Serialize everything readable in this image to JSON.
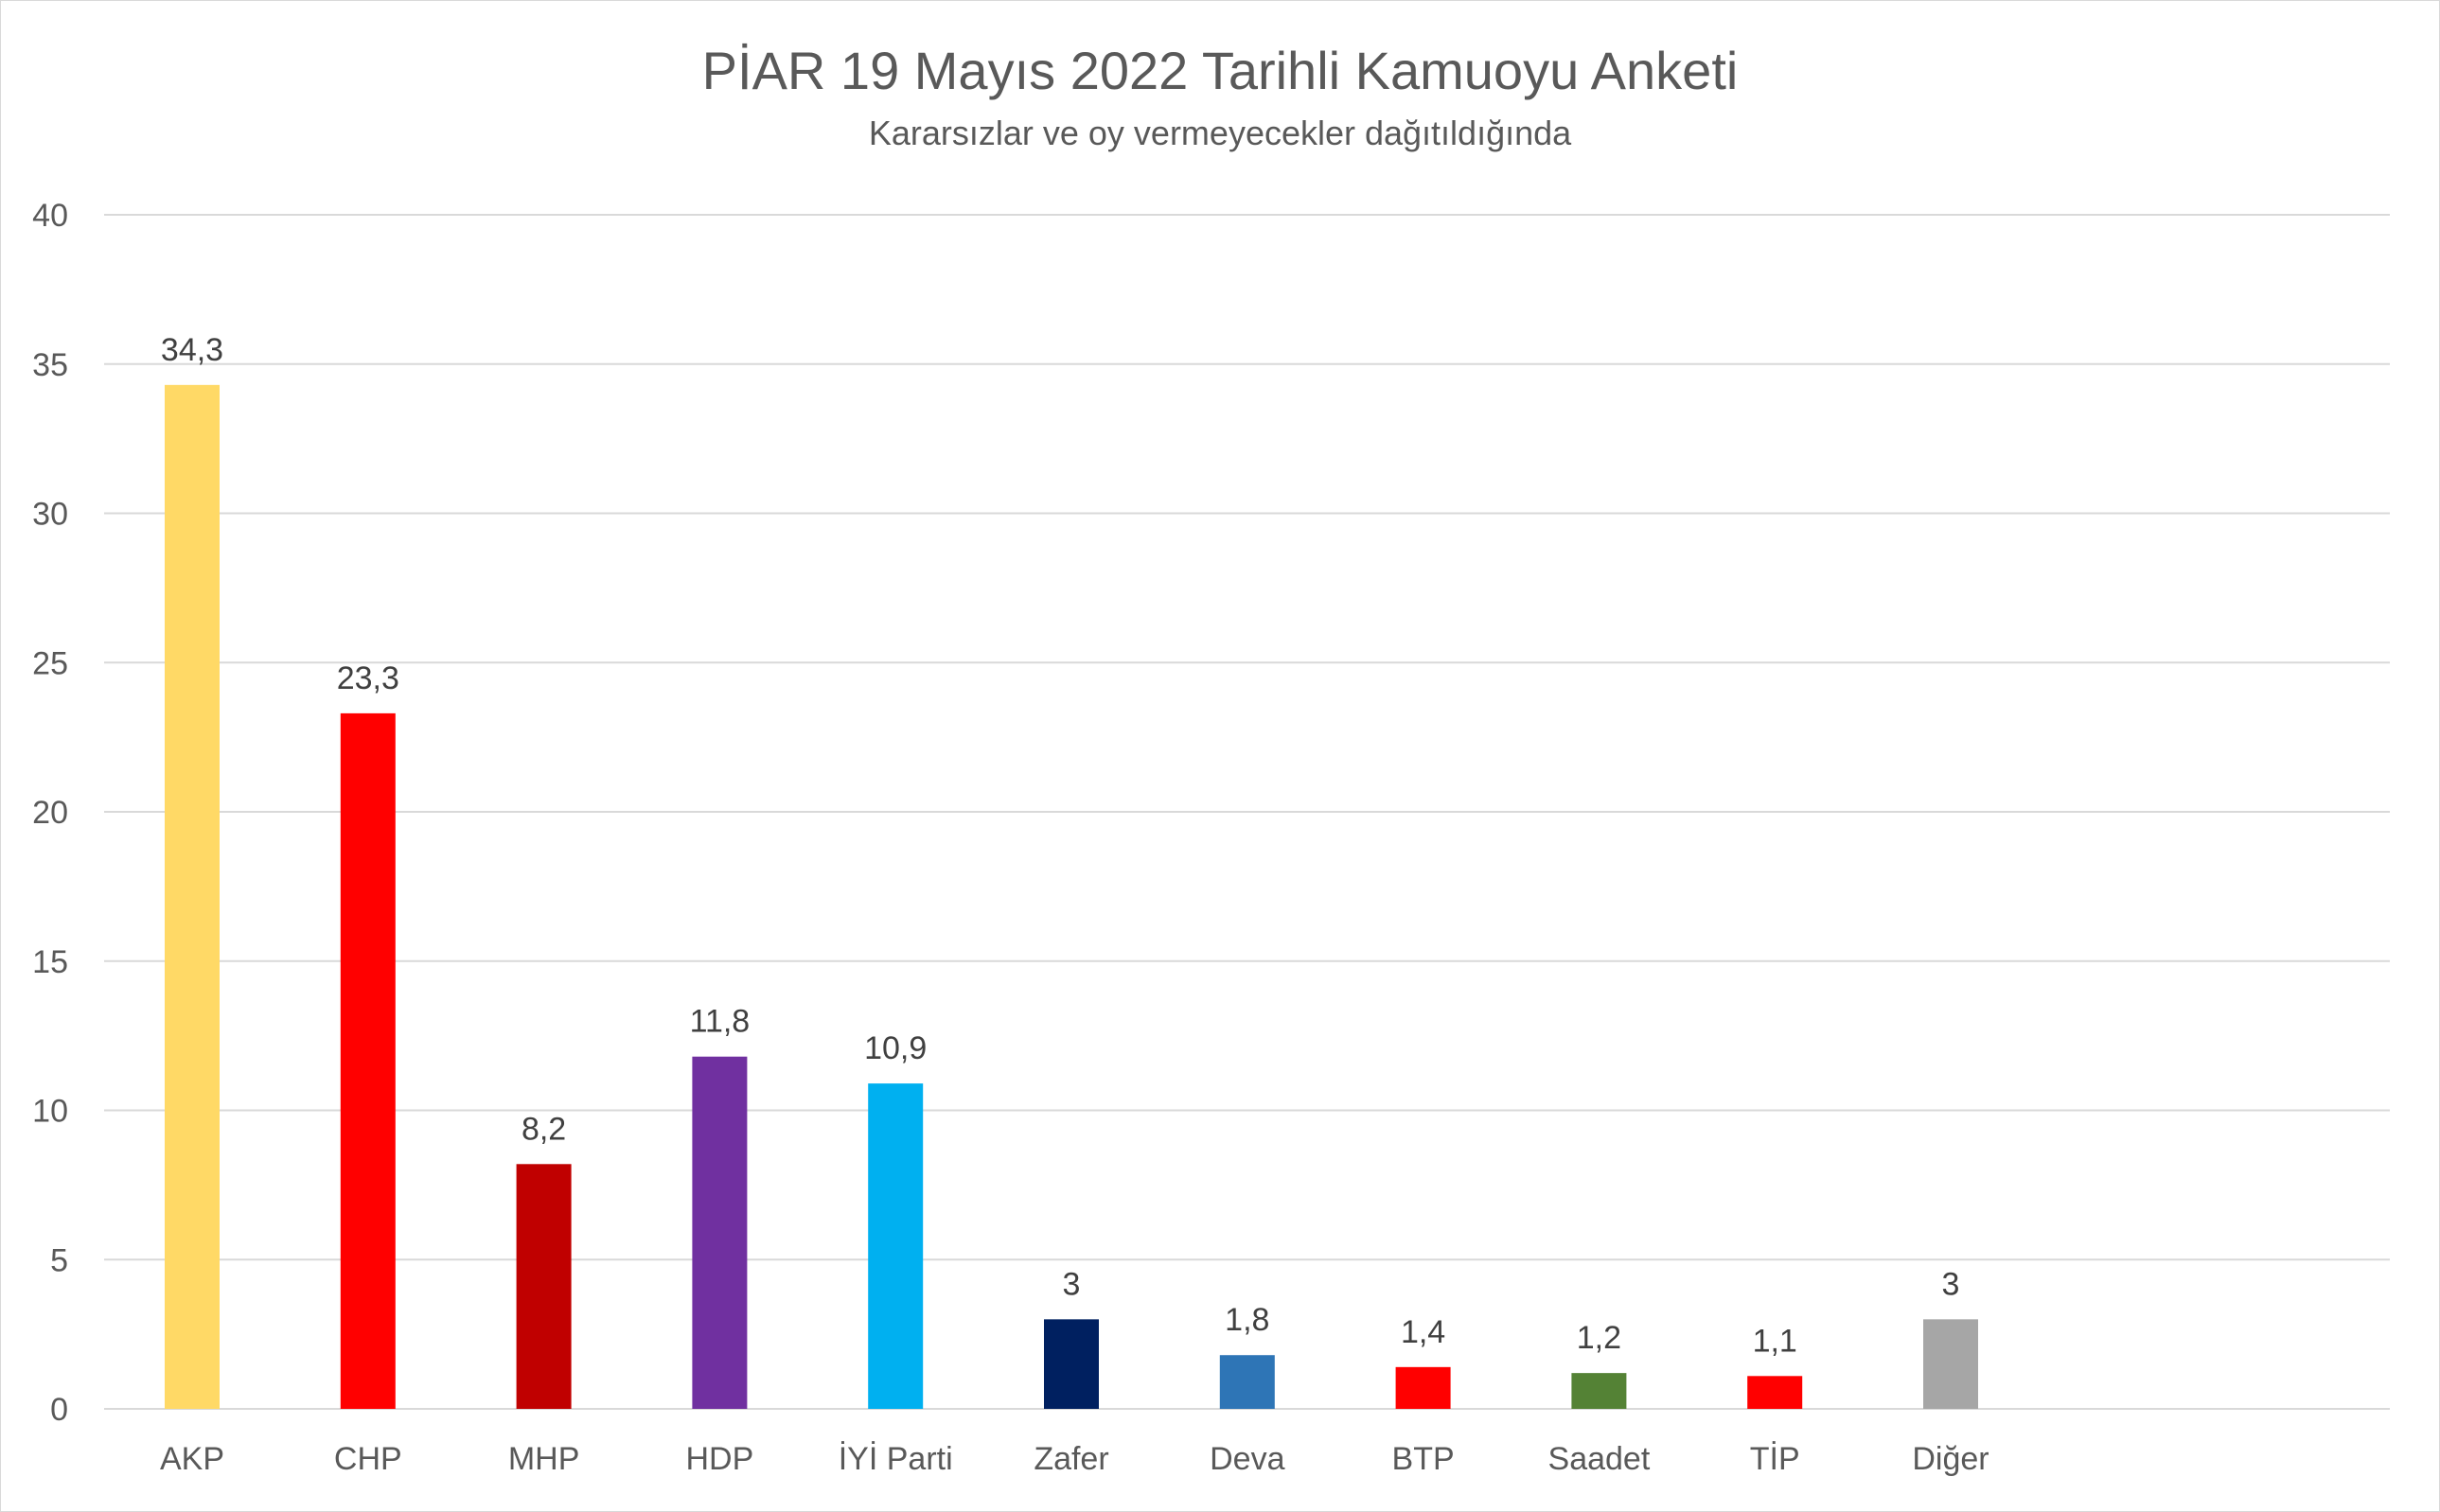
{
  "chart_data": {
    "type": "bar",
    "title": "PİAR 19 Mayıs 2022 Tarihli Kamuoyu Anketi",
    "subtitle": "Kararsızlar ve oy vermeyecekler dağıtıldığında",
    "xlabel": "",
    "ylabel": "",
    "ylim": [
      0,
      40
    ],
    "yticks": [
      0,
      5,
      10,
      15,
      20,
      25,
      30,
      35,
      40
    ],
    "grid": true,
    "legend": "none",
    "categories": [
      "AKP",
      "CHP",
      "MHP",
      "HDP",
      "İYİ Parti",
      "Zafer",
      "Deva",
      "BTP",
      "Saadet",
      "TİP",
      "Diğer"
    ],
    "values": [
      34.3,
      23.3,
      8.2,
      11.8,
      10.9,
      3,
      1.8,
      1.4,
      1.2,
      1.1,
      3
    ],
    "data_labels": [
      "34,3",
      "23,3",
      "8,2",
      "11,8",
      "10,9",
      "3",
      "1,8",
      "1,4",
      "1,2",
      "1,1",
      "3"
    ],
    "colors": [
      "#FFD966",
      "#FF0000",
      "#C00000",
      "#7030A0",
      "#00B0F0",
      "#002060",
      "#2E75B6",
      "#FF0000",
      "#548235",
      "#FF0000",
      "#A6A6A6"
    ]
  }
}
